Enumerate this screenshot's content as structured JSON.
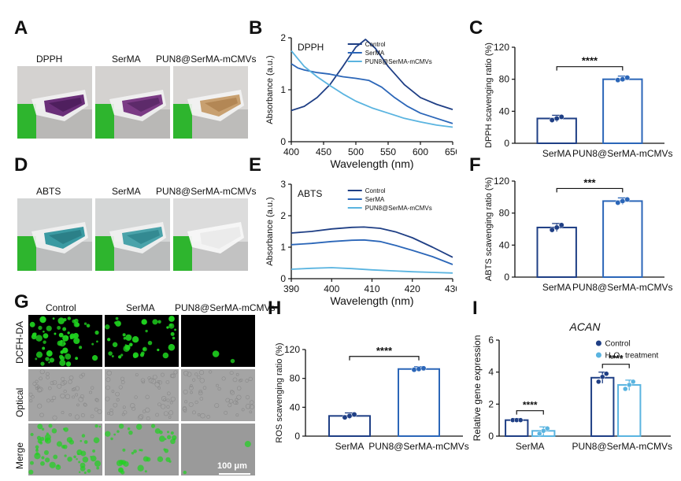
{
  "panels": {
    "A": "A",
    "B": "B",
    "C": "C",
    "D": "D",
    "E": "E",
    "F": "F",
    "G": "G",
    "H": "H",
    "I": "I"
  },
  "panel_A": {
    "labels": [
      "DPPH",
      "SerMA",
      "PUN8@SerMA-mCMVs"
    ]
  },
  "panel_D": {
    "labels": [
      "ABTS",
      "SerMA",
      "PUN8@SerMA-mCMVs"
    ]
  },
  "panel_G": {
    "columns": [
      "Control",
      "SerMA",
      "PUN8@SerMA-mCMVs"
    ],
    "rows": [
      "DCFH-DA",
      "Optical",
      "Merge"
    ],
    "scalebar": "100 μm"
  },
  "colors": {
    "dark": "#1f3f85",
    "mid": "#2b66b8",
    "light": "#5ab4e0",
    "green": "#1fd21f"
  },
  "chart_data": [
    {
      "id": "B",
      "type": "line",
      "inset_label": "DPPH",
      "xlabel": "Wavelength (nm)",
      "ylabel": "Absorbance (a.u.)",
      "xlim": [
        400,
        650
      ],
      "ylim": [
        0,
        2
      ],
      "xticks": [
        "400",
        "450",
        "500",
        "550",
        "600",
        "650"
      ],
      "yticks": [
        "0",
        "1",
        "2"
      ],
      "series": [
        {
          "name": "Control",
          "x": [
            400,
            420,
            440,
            460,
            480,
            500,
            515,
            530,
            550,
            575,
            600,
            625,
            650
          ],
          "y": [
            0.6,
            0.68,
            0.85,
            1.1,
            1.45,
            1.82,
            1.97,
            1.8,
            1.45,
            1.1,
            0.85,
            0.72,
            0.62
          ]
        },
        {
          "name": "SerMA",
          "x": [
            400,
            410,
            420,
            440,
            460,
            480,
            500,
            520,
            540,
            560,
            580,
            600,
            625,
            650
          ],
          "y": [
            1.5,
            1.42,
            1.38,
            1.33,
            1.3,
            1.25,
            1.22,
            1.18,
            1.05,
            0.85,
            0.68,
            0.55,
            0.45,
            0.35
          ]
        },
        {
          "name": "PUN8@SerMA-mCMVs",
          "x": [
            400,
            410,
            420,
            440,
            460,
            480,
            500,
            525,
            550,
            575,
            600,
            625,
            650
          ],
          "y": [
            1.75,
            1.6,
            1.45,
            1.25,
            1.08,
            0.92,
            0.78,
            0.65,
            0.55,
            0.45,
            0.38,
            0.32,
            0.28
          ]
        }
      ]
    },
    {
      "id": "C",
      "type": "bar",
      "ylabel": "DPPH scavenging ratio (%)",
      "categories": [
        "SerMA",
        "PUN8@SerMA-mCMVs"
      ],
      "values": [
        31,
        80
      ],
      "points": [
        [
          29,
          31,
          33
        ],
        [
          79,
          80,
          82
        ]
      ],
      "yticks": [
        "0",
        "40",
        "80",
        "120"
      ],
      "ylim": [
        0,
        120
      ],
      "significance": "****"
    },
    {
      "id": "E",
      "type": "line",
      "inset_label": "ABTS",
      "xlabel": "Wavelength (nm)",
      "ylabel": "Absorbance (a.u.)",
      "xlim": [
        390,
        430
      ],
      "ylim": [
        0,
        3
      ],
      "xticks": [
        "390",
        "400",
        "410",
        "420",
        "430"
      ],
      "yticks": [
        "0",
        "1",
        "2",
        "3"
      ],
      "series": [
        {
          "name": "Control",
          "x": [
            390,
            395,
            400,
            405,
            408,
            412,
            416,
            420,
            425,
            430
          ],
          "y": [
            1.45,
            1.5,
            1.58,
            1.63,
            1.64,
            1.6,
            1.48,
            1.3,
            1.0,
            0.68
          ]
        },
        {
          "name": "SerMA",
          "x": [
            390,
            395,
            400,
            405,
            408,
            412,
            416,
            420,
            425,
            430
          ],
          "y": [
            1.08,
            1.12,
            1.18,
            1.22,
            1.23,
            1.18,
            1.05,
            0.9,
            0.7,
            0.45
          ]
        },
        {
          "name": "PUN8@SerMA-mCMVs",
          "x": [
            390,
            395,
            400,
            405,
            410,
            415,
            420,
            425,
            430
          ],
          "y": [
            0.3,
            0.33,
            0.35,
            0.32,
            0.28,
            0.25,
            0.22,
            0.2,
            0.18
          ]
        }
      ]
    },
    {
      "id": "F",
      "type": "bar",
      "ylabel": "ABTS scavenging ratio (%)",
      "categories": [
        "SerMA",
        "PUN8@SerMA-mCMVs"
      ],
      "values": [
        62,
        95
      ],
      "points": [
        [
          59,
          62,
          65
        ],
        [
          93,
          95,
          97
        ]
      ],
      "yticks": [
        "0",
        "40",
        "80",
        "120"
      ],
      "ylim": [
        0,
        120
      ],
      "significance": "***"
    },
    {
      "id": "H",
      "type": "bar",
      "ylabel": "ROS scavenging ratio (%)",
      "categories": [
        "SerMA",
        "PUN8@SerMA-mCMVs"
      ],
      "values": [
        28,
        93
      ],
      "points": [
        [
          26,
          28,
          30
        ],
        [
          92,
          93,
          94
        ]
      ],
      "yticks": [
        "0",
        "40",
        "80",
        "120"
      ],
      "ylim": [
        0,
        120
      ],
      "significance": "****"
    },
    {
      "id": "I",
      "type": "bar",
      "title": "ACAN",
      "ylabel": "Relative gene expression",
      "categories": [
        "SerMA",
        "PUN8@SerMA-mCMVs"
      ],
      "series": [
        {
          "name": "Control",
          "values": [
            1.0,
            3.65
          ],
          "points": [
            [
              1.0,
              1.0,
              1.0
            ],
            [
              3.4,
              3.7,
              3.9
            ]
          ]
        },
        {
          "name": "H₂O₂ treatment",
          "values": [
            0.33,
            3.2
          ],
          "points": [
            [
              0.15,
              0.33,
              0.48
            ],
            [
              2.95,
              3.2,
              3.4
            ]
          ]
        }
      ],
      "yticks": [
        "0",
        "2",
        "4",
        "6"
      ],
      "ylim": [
        0,
        6
      ],
      "significance": [
        "****",
        "****"
      ]
    }
  ]
}
